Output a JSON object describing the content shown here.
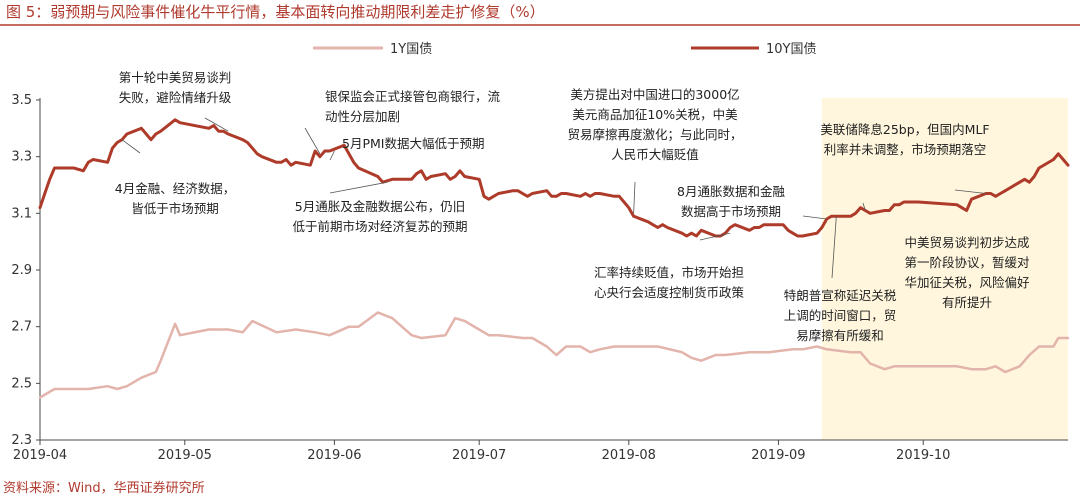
{
  "title": "图 5：弱预期与风险事件催化牛平行情，基本面转向推动期限利差走扩修复（%）",
  "source": "资料来源：Wind，华西证券研究所",
  "colors": {
    "accent": "#b03a2e",
    "series_1y": "#e2b4ab",
    "series_10y": "#ae3b2a",
    "highlight": "#fff6dd",
    "axis": "#4a4a4a"
  },
  "chart_data": {
    "type": "line",
    "ylim": [
      2.3,
      3.5
    ],
    "yticks": [
      2.3,
      2.5,
      2.7,
      2.9,
      3.1,
      3.3,
      3.5
    ],
    "ytick_labels": [
      "2.3",
      "2.5",
      "2.7",
      "2.9",
      "3.1",
      "3.3",
      "3.5"
    ],
    "xlim": [
      "2019-04-01",
      "2019-10-31"
    ],
    "xticks": [
      "2019-04-01",
      "2019-05-01",
      "2019-06-01",
      "2019-07-01",
      "2019-08-01",
      "2019-09-01",
      "2019-10-01"
    ],
    "xtick_labels": [
      "2019-04",
      "2019-05",
      "2019-06",
      "2019-07",
      "2019-08",
      "2019-09",
      "2019-10"
    ],
    "shaded_region": [
      "2019-09-10",
      "2019-10-31"
    ],
    "legend_position": "top",
    "series": [
      {
        "name": "1Y国债",
        "color": "#e2b4ab",
        "points": [
          [
            "2019-04-01",
            2.45
          ],
          [
            "2019-04-04",
            2.48
          ],
          [
            "2019-04-08",
            2.48
          ],
          [
            "2019-04-11",
            2.48
          ],
          [
            "2019-04-15",
            2.49
          ],
          [
            "2019-04-17",
            2.48
          ],
          [
            "2019-04-19",
            2.49
          ],
          [
            "2019-04-22",
            2.52
          ],
          [
            "2019-04-25",
            2.54
          ],
          [
            "2019-04-26",
            2.58
          ],
          [
            "2019-04-29",
            2.71
          ],
          [
            "2019-04-30",
            2.67
          ],
          [
            "2019-05-06",
            2.69
          ],
          [
            "2019-05-10",
            2.69
          ],
          [
            "2019-05-13",
            2.68
          ],
          [
            "2019-05-15",
            2.72
          ],
          [
            "2019-05-20",
            2.68
          ],
          [
            "2019-05-24",
            2.69
          ],
          [
            "2019-05-28",
            2.68
          ],
          [
            "2019-05-31",
            2.67
          ],
          [
            "2019-06-04",
            2.7
          ],
          [
            "2019-06-06",
            2.7
          ],
          [
            "2019-06-10",
            2.75
          ],
          [
            "2019-06-13",
            2.73
          ],
          [
            "2019-06-17",
            2.67
          ],
          [
            "2019-06-19",
            2.66
          ],
          [
            "2019-06-24",
            2.67
          ],
          [
            "2019-06-26",
            2.73
          ],
          [
            "2019-06-28",
            2.72
          ],
          [
            "2019-07-03",
            2.67
          ],
          [
            "2019-07-05",
            2.67
          ],
          [
            "2019-07-10",
            2.66
          ],
          [
            "2019-07-12",
            2.66
          ],
          [
            "2019-07-15",
            2.63
          ],
          [
            "2019-07-17",
            2.6
          ],
          [
            "2019-07-19",
            2.63
          ],
          [
            "2019-07-22",
            2.63
          ],
          [
            "2019-07-24",
            2.61
          ],
          [
            "2019-07-26",
            2.62
          ],
          [
            "2019-07-29",
            2.63
          ],
          [
            "2019-07-31",
            2.63
          ],
          [
            "2019-08-05",
            2.63
          ],
          [
            "2019-08-07",
            2.63
          ],
          [
            "2019-08-12",
            2.61
          ],
          [
            "2019-08-14",
            2.59
          ],
          [
            "2019-08-16",
            2.58
          ],
          [
            "2019-08-19",
            2.6
          ],
          [
            "2019-08-21",
            2.6
          ],
          [
            "2019-08-26",
            2.61
          ],
          [
            "2019-08-30",
            2.61
          ],
          [
            "2019-09-04",
            2.62
          ],
          [
            "2019-09-06",
            2.62
          ],
          [
            "2019-09-09",
            2.63
          ],
          [
            "2019-09-11",
            2.62
          ],
          [
            "2019-09-16",
            2.61
          ],
          [
            "2019-09-18",
            2.61
          ],
          [
            "2019-09-20",
            2.57
          ],
          [
            "2019-09-23",
            2.55
          ],
          [
            "2019-09-25",
            2.56
          ],
          [
            "2019-09-27",
            2.56
          ],
          [
            "2019-10-08",
            2.56
          ],
          [
            "2019-10-11",
            2.55
          ],
          [
            "2019-10-14",
            2.55
          ],
          [
            "2019-10-16",
            2.56
          ],
          [
            "2019-10-18",
            2.54
          ],
          [
            "2019-10-21",
            2.56
          ],
          [
            "2019-10-23",
            2.6
          ],
          [
            "2019-10-25",
            2.63
          ],
          [
            "2019-10-28",
            2.63
          ],
          [
            "2019-10-29",
            2.66
          ],
          [
            "2019-10-31",
            2.66
          ]
        ]
      },
      {
        "name": "10Y国债",
        "color": "#ae3b2a",
        "points": [
          [
            "2019-04-01",
            3.12
          ],
          [
            "2019-04-02",
            3.17
          ],
          [
            "2019-04-03",
            3.22
          ],
          [
            "2019-04-04",
            3.26
          ],
          [
            "2019-04-08",
            3.26
          ],
          [
            "2019-04-10",
            3.25
          ],
          [
            "2019-04-11",
            3.28
          ],
          [
            "2019-04-12",
            3.29
          ],
          [
            "2019-04-15",
            3.28
          ],
          [
            "2019-04-16",
            3.33
          ],
          [
            "2019-04-17",
            3.35
          ],
          [
            "2019-04-18",
            3.36
          ],
          [
            "2019-04-19",
            3.38
          ],
          [
            "2019-04-22",
            3.4
          ],
          [
            "2019-04-23",
            3.38
          ],
          [
            "2019-04-24",
            3.36
          ],
          [
            "2019-04-25",
            3.38
          ],
          [
            "2019-04-26",
            3.39
          ],
          [
            "2019-04-29",
            3.43
          ],
          [
            "2019-04-30",
            3.42
          ],
          [
            "2019-05-06",
            3.4
          ],
          [
            "2019-05-07",
            3.41
          ],
          [
            "2019-05-08",
            3.39
          ],
          [
            "2019-05-09",
            3.39
          ],
          [
            "2019-05-10",
            3.38
          ],
          [
            "2019-05-13",
            3.36
          ],
          [
            "2019-05-14",
            3.35
          ],
          [
            "2019-05-15",
            3.33
          ],
          [
            "2019-05-16",
            3.31
          ],
          [
            "2019-05-17",
            3.3
          ],
          [
            "2019-05-20",
            3.28
          ],
          [
            "2019-05-21",
            3.28
          ],
          [
            "2019-05-22",
            3.29
          ],
          [
            "2019-05-23",
            3.27
          ],
          [
            "2019-05-24",
            3.28
          ],
          [
            "2019-05-27",
            3.27
          ],
          [
            "2019-05-28",
            3.32
          ],
          [
            "2019-05-29",
            3.3
          ],
          [
            "2019-05-30",
            3.32
          ],
          [
            "2019-05-31",
            3.32
          ],
          [
            "2019-06-03",
            3.34
          ],
          [
            "2019-06-04",
            3.31
          ],
          [
            "2019-06-05",
            3.28
          ],
          [
            "2019-06-06",
            3.26
          ],
          [
            "2019-06-10",
            3.23
          ],
          [
            "2019-06-11",
            3.21
          ],
          [
            "2019-06-13",
            3.22
          ],
          [
            "2019-06-14",
            3.22
          ],
          [
            "2019-06-17",
            3.22
          ],
          [
            "2019-06-18",
            3.24
          ],
          [
            "2019-06-19",
            3.25
          ],
          [
            "2019-06-20",
            3.22
          ],
          [
            "2019-06-21",
            3.23
          ],
          [
            "2019-06-24",
            3.24
          ],
          [
            "2019-06-25",
            3.22
          ],
          [
            "2019-06-26",
            3.23
          ],
          [
            "2019-06-27",
            3.25
          ],
          [
            "2019-06-28",
            3.23
          ],
          [
            "2019-07-01",
            3.22
          ],
          [
            "2019-07-02",
            3.16
          ],
          [
            "2019-07-03",
            3.15
          ],
          [
            "2019-07-04",
            3.16
          ],
          [
            "2019-07-05",
            3.17
          ],
          [
            "2019-07-08",
            3.18
          ],
          [
            "2019-07-09",
            3.18
          ],
          [
            "2019-07-10",
            3.17
          ],
          [
            "2019-07-11",
            3.16
          ],
          [
            "2019-07-12",
            3.17
          ],
          [
            "2019-07-15",
            3.18
          ],
          [
            "2019-07-16",
            3.16
          ],
          [
            "2019-07-17",
            3.16
          ],
          [
            "2019-07-18",
            3.17
          ],
          [
            "2019-07-19",
            3.17
          ],
          [
            "2019-07-22",
            3.16
          ],
          [
            "2019-07-23",
            3.17
          ],
          [
            "2019-07-24",
            3.16
          ],
          [
            "2019-07-25",
            3.17
          ],
          [
            "2019-07-26",
            3.17
          ],
          [
            "2019-07-29",
            3.16
          ],
          [
            "2019-07-30",
            3.16
          ],
          [
            "2019-07-31",
            3.14
          ],
          [
            "2019-08-01",
            3.12
          ],
          [
            "2019-08-02",
            3.09
          ],
          [
            "2019-08-05",
            3.07
          ],
          [
            "2019-08-06",
            3.06
          ],
          [
            "2019-08-07",
            3.05
          ],
          [
            "2019-08-08",
            3.06
          ],
          [
            "2019-08-09",
            3.05
          ],
          [
            "2019-08-12",
            3.03
          ],
          [
            "2019-08-13",
            3.02
          ],
          [
            "2019-08-14",
            3.03
          ],
          [
            "2019-08-15",
            3.02
          ],
          [
            "2019-08-16",
            3.04
          ],
          [
            "2019-08-19",
            3.02
          ],
          [
            "2019-08-20",
            3.02
          ],
          [
            "2019-08-21",
            3.03
          ],
          [
            "2019-08-22",
            3.05
          ],
          [
            "2019-08-23",
            3.06
          ],
          [
            "2019-08-26",
            3.04
          ],
          [
            "2019-08-27",
            3.05
          ],
          [
            "2019-08-28",
            3.05
          ],
          [
            "2019-08-29",
            3.06
          ],
          [
            "2019-08-30",
            3.06
          ],
          [
            "2019-09-02",
            3.06
          ],
          [
            "2019-09-03",
            3.04
          ],
          [
            "2019-09-04",
            3.03
          ],
          [
            "2019-09-05",
            3.02
          ],
          [
            "2019-09-06",
            3.02
          ],
          [
            "2019-09-09",
            3.03
          ],
          [
            "2019-09-10",
            3.05
          ],
          [
            "2019-09-11",
            3.08
          ],
          [
            "2019-09-12",
            3.09
          ],
          [
            "2019-09-16",
            3.09
          ],
          [
            "2019-09-17",
            3.1
          ],
          [
            "2019-09-18",
            3.12
          ],
          [
            "2019-09-19",
            3.11
          ],
          [
            "2019-09-20",
            3.1
          ],
          [
            "2019-09-23",
            3.11
          ],
          [
            "2019-09-24",
            3.11
          ],
          [
            "2019-09-25",
            3.13
          ],
          [
            "2019-09-26",
            3.13
          ],
          [
            "2019-09-27",
            3.14
          ],
          [
            "2019-09-30",
            3.14
          ],
          [
            "2019-10-08",
            3.13
          ],
          [
            "2019-10-09",
            3.12
          ],
          [
            "2019-10-10",
            3.11
          ],
          [
            "2019-10-11",
            3.15
          ],
          [
            "2019-10-14",
            3.17
          ],
          [
            "2019-10-15",
            3.17
          ],
          [
            "2019-10-16",
            3.16
          ],
          [
            "2019-10-17",
            3.17
          ],
          [
            "2019-10-18",
            3.18
          ],
          [
            "2019-10-21",
            3.21
          ],
          [
            "2019-10-22",
            3.22
          ],
          [
            "2019-10-23",
            3.21
          ],
          [
            "2019-10-24",
            3.23
          ],
          [
            "2019-10-25",
            3.26
          ],
          [
            "2019-10-28",
            3.29
          ],
          [
            "2019-10-29",
            3.31
          ],
          [
            "2019-10-30",
            3.29
          ],
          [
            "2019-10-31",
            3.27
          ]
        ]
      }
    ],
    "annotations": [
      {
        "lines": [
          "第十轮中美贸易谈判",
          "失败，避险情绪升级"
        ],
        "anchor": "middle",
        "point": [
          "2019-05-10",
          3.39
        ]
      },
      {
        "lines": [
          "4月金融、经济数据，",
          "皆低于市场预期"
        ],
        "anchor": "middle",
        "point": [
          "2019-04-18",
          3.36
        ]
      },
      {
        "lines": [
          "银保监会正式接管包商银行，流",
          "动性分层加剧"
        ],
        "anchor": "start",
        "point": [
          "2019-05-29",
          3.31
        ]
      },
      {
        "lines": [
          "5月PMI数据大幅低于预期"
        ],
        "anchor": "start",
        "point": [
          "2019-06-01",
          3.32
        ]
      },
      {
        "lines": [
          "5月通胀及金融数据公布，仍旧",
          "低于前期市场对经济复苏的预期"
        ],
        "anchor": "middle",
        "point": [
          "2019-06-12",
          3.21
        ]
      },
      {
        "lines": [
          "美方提出对中国进口的3000亿",
          "美元商品加征10%关税，中美",
          "贸易摩擦再度激化；与此同时，",
          "人民币大幅贬值"
        ],
        "anchor": "middle",
        "point": [
          "2019-08-02",
          3.1
        ]
      },
      {
        "lines": [
          "8月通胀数据和金融",
          "数据高于市场预期"
        ],
        "anchor": "middle",
        "point": [
          "2019-09-11",
          3.08
        ]
      },
      {
        "lines": [
          "汇率持续贬值，市场开始担",
          "心央行会适度控制货币政策"
        ],
        "anchor": "middle",
        "point": [
          "2019-08-22",
          3.03
        ]
      },
      {
        "lines": [
          "特朗普宣称延迟关税",
          "上调的时间窗口，贸",
          "易摩擦有所缓和"
        ],
        "anchor": "middle",
        "point": [
          "2019-09-13",
          3.09
        ]
      },
      {
        "lines": [
          "美联储降息25bp，但国内MLF",
          "利率并未调整，市场预期落空"
        ],
        "anchor": "middle",
        "point": [
          "2019-09-19",
          3.11
        ]
      },
      {
        "lines": [
          "中美贸易谈判初步达成",
          "第一阶段协议，暂缓对",
          "华加征关税，风险偏好",
          "有所提升"
        ],
        "anchor": "middle",
        "point": [
          "2019-10-14",
          3.17
        ]
      }
    ]
  }
}
